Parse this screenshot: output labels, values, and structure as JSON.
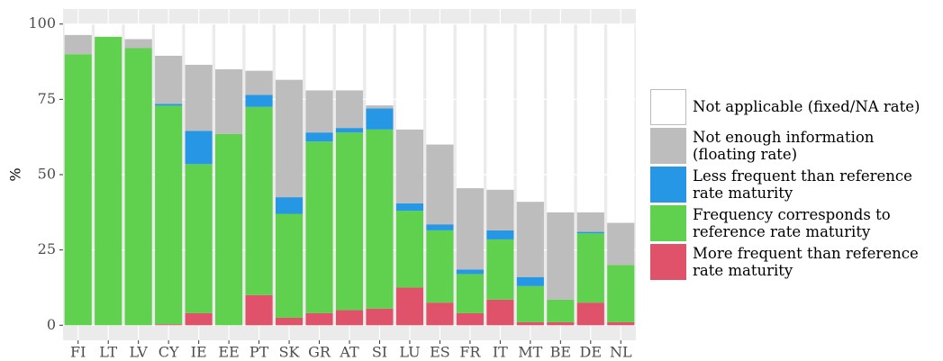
{
  "chart_data": {
    "type": "stacked_bar",
    "y_label": "%",
    "categories": [
      "FI",
      "LT",
      "LV",
      "CY",
      "IE",
      "EE",
      "PT",
      "SK",
      "GR",
      "AT",
      "SI",
      "LU",
      "ES",
      "FR",
      "IT",
      "MT",
      "BE",
      "DE",
      "NL"
    ],
    "series": [
      {
        "name": "More frequent than reference\nrate maturity",
        "color": "#e05269",
        "values": [
          0,
          0,
          0,
          0.3,
          4,
          0,
          10,
          2.5,
          4,
          5,
          5.5,
          12.5,
          7.5,
          4,
          8.5,
          1,
          1,
          7.5,
          1
        ]
      },
      {
        "name": "Frequency corresponds to\nreference rate maturity",
        "color": "#5fd14e",
        "values": [
          90,
          95.8,
          92,
          72.6,
          49.5,
          63.5,
          62.5,
          34.5,
          57,
          59,
          59.5,
          25.5,
          24,
          13,
          20,
          12,
          7.5,
          23,
          19
        ]
      },
      {
        "name": "Less frequent than reference\nrate maturity",
        "color": "#2597e4",
        "values": [
          0,
          0,
          0,
          0.6,
          11,
          0,
          4,
          5.5,
          3,
          1.5,
          7,
          2.5,
          2,
          1.5,
          3,
          3,
          0,
          0.5,
          0
        ]
      },
      {
        "name": "Not enough information\n(floating rate)",
        "color": "#bdbdbd",
        "values": [
          6.4,
          0,
          3,
          16,
          22,
          21.5,
          8,
          39,
          14,
          12.5,
          1,
          24.5,
          26.5,
          27,
          13.5,
          25,
          29,
          6.5,
          14
        ]
      },
      {
        "name": "Not applicable (fixed/NA rate)",
        "color": "#ffffff",
        "values": [
          3.6,
          4.2,
          5,
          10.5,
          13.5,
          15,
          15.5,
          18.5,
          22,
          22,
          27,
          35,
          40,
          54.5,
          55,
          59,
          62.5,
          62.5,
          66
        ]
      }
    ],
    "ylim": [
      -5,
      105
    ],
    "yticks": [
      0,
      25,
      50,
      75,
      100
    ],
    "grid": true
  }
}
